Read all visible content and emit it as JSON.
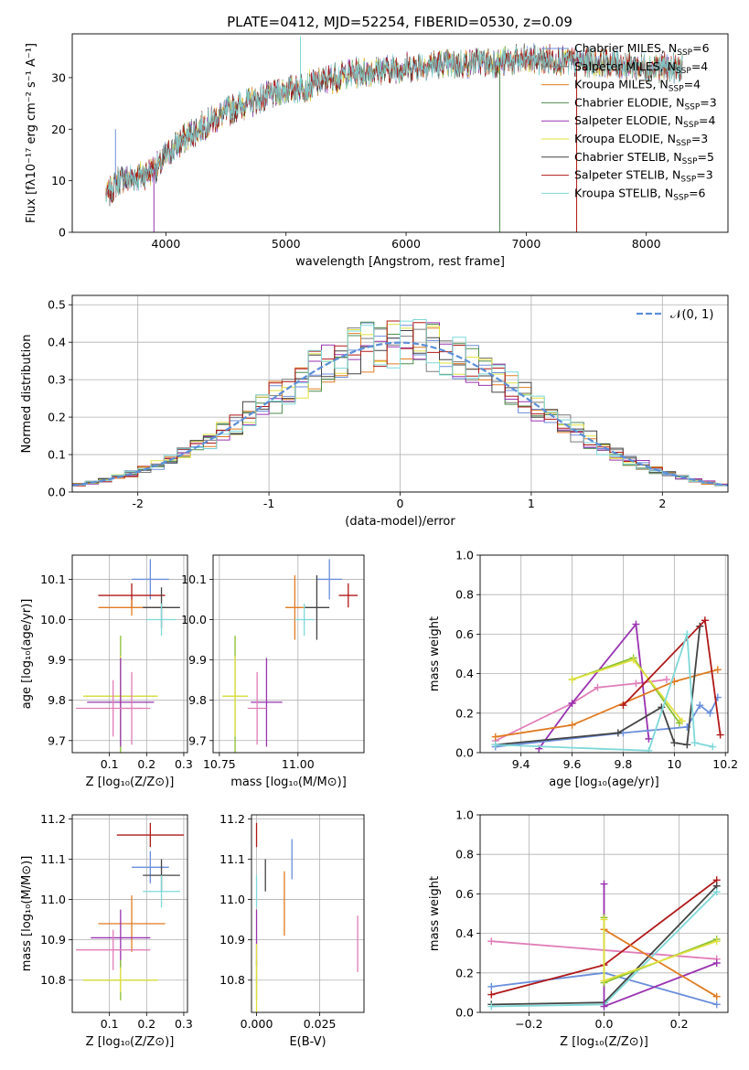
{
  "figure_title": "PLATE=0412, MJD=52254, FIBERID=0530, z=0.09",
  "colors": {
    "Chabrier MILES": "#6a8edb",
    "Salpeter MILES": "#7b7b7b",
    "Kroupa MILES": "#e07b22",
    "Chabrier ELODIE": "#4e8c4e",
    "Salpeter ELODIE": "#9a32b0",
    "Kroupa ELODIE": "#e0e040",
    "Chabrier STELIB": "#444444",
    "Salpeter STELIB": "#b01818",
    "Kroupa STELIB": "#7fd8d8",
    "pink": "#e07db8",
    "lime": "#88c030",
    "normal_curve": "#5b8fd8"
  },
  "chart_data": [
    {
      "id": "spectrum",
      "type": "line",
      "xlabel": "wavelength [Angstrom, rest frame]",
      "ylabel": "Flux [fλ10⁻¹⁷ erg cm⁻² s⁻¹ A⁻¹]",
      "xlim": [
        3220,
        8680
      ],
      "ylim": [
        0,
        38.5
      ],
      "xticks": [
        4000,
        5000,
        6000,
        7000,
        8000
      ],
      "yticks": [
        0,
        10,
        20,
        30
      ],
      "legend_position": "top-right",
      "legend": [
        {
          "label": "Chabrier MILES, N",
          "sub": "SSP",
          "tail": "=6",
          "color": "#6a8edb"
        },
        {
          "label": "Salpeter MILES, N",
          "sub": "SSP",
          "tail": "=4",
          "color": "#7b7b7b"
        },
        {
          "label": "Kroupa MILES, N",
          "sub": "SSP",
          "tail": "=4",
          "color": "#e07b22"
        },
        {
          "label": "Chabrier ELODIE, N",
          "sub": "SSP",
          "tail": "=3",
          "color": "#4e8c4e"
        },
        {
          "label": "Salpeter ELODIE, N",
          "sub": "SSP",
          "tail": "=4",
          "color": "#9a32b0"
        },
        {
          "label": "Kroupa ELODIE, N",
          "sub": "SSP",
          "tail": "=3",
          "color": "#e0e040"
        },
        {
          "label": "Chabrier STELIB, N",
          "sub": "SSP",
          "tail": "=5",
          "color": "#444444"
        },
        {
          "label": "Salpeter STELIB, N",
          "sub": "SSP",
          "tail": "=3",
          "color": "#b01818"
        },
        {
          "label": "Kroupa STELIB, N",
          "sub": "SSP",
          "tail": "=6",
          "color": "#7fd8d8"
        }
      ],
      "continuum": [
        [
          3500,
          7
        ],
        [
          3600,
          10
        ],
        [
          3800,
          11
        ],
        [
          3950,
          13
        ],
        [
          4000,
          15
        ],
        [
          4200,
          19
        ],
        [
          4400,
          22
        ],
        [
          4600,
          24.5
        ],
        [
          4800,
          26
        ],
        [
          5000,
          27.5
        ],
        [
          5200,
          28.5
        ],
        [
          5400,
          30
        ],
        [
          5600,
          31
        ],
        [
          5800,
          31.5
        ],
        [
          6000,
          32
        ],
        [
          6200,
          32.5
        ],
        [
          6400,
          32.5
        ],
        [
          6600,
          33
        ],
        [
          6800,
          33
        ],
        [
          7000,
          33.5
        ],
        [
          7200,
          33.5
        ],
        [
          7400,
          33
        ],
        [
          7600,
          33
        ],
        [
          7800,
          32.5
        ],
        [
          8000,
          32
        ],
        [
          8200,
          32
        ],
        [
          8300,
          31.5
        ]
      ],
      "spikes": [
        [
          3580,
          20
        ],
        [
          3900,
          0
        ],
        [
          5120,
          38
        ],
        [
          6780,
          0
        ],
        [
          7420,
          0
        ]
      ]
    },
    {
      "id": "residuals",
      "type": "bar",
      "xlabel": "(data-model)/error",
      "ylabel": "Normed distribution",
      "xlim": [
        -2.5,
        2.5
      ],
      "ylim": [
        0,
        0.525
      ],
      "xticks": [
        -2,
        -1,
        0,
        1,
        2
      ],
      "yticks": [
        0.0,
        0.1,
        0.2,
        0.3,
        0.4,
        0.5
      ],
      "legend_position": "top-right",
      "legend_label": "𝒩(0, 1)",
      "bins": 50
    },
    {
      "id": "age_vs_Z",
      "type": "scatter",
      "xlabel": "Z [log₁₀(Z/Z⊙)]",
      "ylabel": "age  [log₁₀(age/yr)]",
      "xlim": [
        0.0,
        0.31
      ],
      "ylim": [
        9.67,
        10.16
      ],
      "xticks": [
        0.1,
        0.2,
        0.3
      ],
      "yticks": [
        9.7,
        9.8,
        9.9,
        10.0,
        10.1
      ],
      "points": [
        {
          "x": 0.21,
          "y": 10.1,
          "xerr": 0.05,
          "yerr": 0.05,
          "color": "#6a8edb"
        },
        {
          "x": 0.16,
          "y": 10.06,
          "xerr": 0.09,
          "yerr": 0.03,
          "color": "#b01818"
        },
        {
          "x": 0.16,
          "y": 10.03,
          "xerr": 0.09,
          "yerr": 0.02,
          "color": "#e07b22"
        },
        {
          "x": 0.24,
          "y": 10.03,
          "xerr": 0.05,
          "yerr": 0.05,
          "color": "#444444"
        },
        {
          "x": 0.24,
          "y": 10.0,
          "xerr": 0.04,
          "yerr": 0.04,
          "color": "#7fd8d8"
        },
        {
          "x": 0.13,
          "y": 9.81,
          "xerr": 0.1,
          "yerr": 0.15,
          "color": "#88c030"
        },
        {
          "x": 0.13,
          "y": 9.81,
          "xerr": 0.1,
          "yerr": 0.1,
          "color": "#e0e040"
        },
        {
          "x": 0.13,
          "y": 9.795,
          "xerr": 0.09,
          "yerr": 0.11,
          "color": "#9a32b0"
        },
        {
          "x": 0.11,
          "y": 9.78,
          "xerr": 0.1,
          "yerr": 0.07,
          "color": "#e07db8"
        },
        {
          "x": 0.16,
          "y": 9.78,
          "xerr": 0.03,
          "yerr": 0.09,
          "color": "#e07db8"
        }
      ]
    },
    {
      "id": "age_vs_mass",
      "type": "scatter",
      "xlabel": "mass [log₁₀(M/M⊙)]",
      "ylabel": "",
      "xlim": [
        10.73,
        11.21
      ],
      "ylim": [
        9.67,
        10.16
      ],
      "xticks": [
        10.75,
        11.0
      ],
      "xticklabels": [
        "10.75",
        "11.00"
      ],
      "yticks": [
        9.7,
        9.8,
        9.9,
        10.0,
        10.1
      ],
      "points": [
        {
          "x": 11.1,
          "y": 10.1,
          "xerr": 0.04,
          "yerr": 0.05,
          "color": "#6a8edb"
        },
        {
          "x": 11.16,
          "y": 10.06,
          "xerr": 0.03,
          "yerr": 0.03,
          "color": "#b01818"
        },
        {
          "x": 11.06,
          "y": 10.03,
          "xerr": 0.04,
          "yerr": 0.08,
          "color": "#444444"
        },
        {
          "x": 10.99,
          "y": 10.03,
          "xerr": 0.03,
          "yerr": 0.08,
          "color": "#e07b22"
        },
        {
          "x": 11.02,
          "y": 10.0,
          "xerr": 0.03,
          "yerr": 0.04,
          "color": "#7fd8d8"
        },
        {
          "x": 10.8,
          "y": 9.81,
          "xerr": 0.04,
          "yerr": 0.15,
          "color": "#88c030"
        },
        {
          "x": 10.8,
          "y": 9.81,
          "xerr": 0.04,
          "yerr": 0.1,
          "color": "#e0e040"
        },
        {
          "x": 10.9,
          "y": 9.795,
          "xerr": 0.05,
          "yerr": 0.11,
          "color": "#9a32b0"
        },
        {
          "x": 10.87,
          "y": 9.78,
          "xerr": 0.03,
          "yerr": 0.09,
          "color": "#e07db8"
        }
      ]
    },
    {
      "id": "weight_vs_age",
      "type": "line",
      "xlabel": "age  [log₁₀(age/yr)]",
      "ylabel": "mass weight",
      "xlim": [
        9.24,
        10.21
      ],
      "ylim": [
        0,
        1
      ],
      "xticks": [
        9.4,
        9.6,
        9.8,
        10.0,
        10.2
      ],
      "yticks": [
        0.0,
        0.2,
        0.4,
        0.6,
        0.8,
        1.0
      ],
      "series": [
        {
          "color": "#e07db8",
          "points": [
            [
              9.3,
              0.06
            ],
            [
              9.6,
              0.25
            ],
            [
              9.7,
              0.33
            ],
            [
              9.85,
              0.35
            ],
            [
              9.97,
              0.37
            ]
          ]
        },
        {
          "color": "#9a32b0",
          "points": [
            [
              9.47,
              0.02
            ],
            [
              9.6,
              0.25
            ],
            [
              9.85,
              0.65
            ],
            [
              9.9,
              0.07
            ]
          ]
        },
        {
          "color": "#88c030",
          "points": [
            [
              9.6,
              0.37
            ],
            [
              9.84,
              0.48
            ],
            [
              10.02,
              0.15
            ]
          ]
        },
        {
          "color": "#e0e040",
          "points": [
            [
              9.6,
              0.37
            ],
            [
              9.84,
              0.47
            ],
            [
              10.03,
              0.16
            ]
          ]
        },
        {
          "color": "#e07b22",
          "points": [
            [
              9.3,
              0.08
            ],
            [
              9.6,
              0.14
            ],
            [
              10.0,
              0.36
            ],
            [
              10.17,
              0.42
            ]
          ]
        },
        {
          "color": "#6a8edb",
          "points": [
            [
              9.3,
              0.03
            ],
            [
              9.8,
              0.1
            ],
            [
              10.05,
              0.13
            ],
            [
              10.1,
              0.24
            ],
            [
              10.14,
              0.2
            ],
            [
              10.17,
              0.28
            ]
          ]
        },
        {
          "color": "#444444",
          "points": [
            [
              9.3,
              0.04
            ],
            [
              9.78,
              0.1
            ],
            [
              9.95,
              0.23
            ],
            [
              10.0,
              0.05
            ],
            [
              10.05,
              0.04
            ],
            [
              10.1,
              0.64
            ]
          ]
        },
        {
          "color": "#b01818",
          "points": [
            [
              9.8,
              0.24
            ],
            [
              10.12,
              0.67
            ],
            [
              10.18,
              0.09
            ]
          ]
        },
        {
          "color": "#7fd8d8",
          "points": [
            [
              9.3,
              0.04
            ],
            [
              9.9,
              0.01
            ],
            [
              10.05,
              0.6
            ],
            [
              10.08,
              0.05
            ],
            [
              10.15,
              0.03
            ]
          ]
        }
      ]
    },
    {
      "id": "mass_vs_Z",
      "type": "scatter",
      "xlabel": "Z [log₁₀(Z/Z⊙)]",
      "ylabel": "mass [log₁₀(M/M⊙)]",
      "xlim": [
        0.0,
        0.31
      ],
      "ylim": [
        10.72,
        11.21
      ],
      "xticks": [
        0.1,
        0.2,
        0.3
      ],
      "yticks": [
        10.8,
        10.9,
        11.0,
        11.1,
        11.2
      ],
      "points": [
        {
          "x": 0.21,
          "y": 11.16,
          "xerr": 0.09,
          "yerr": 0.03,
          "color": "#b01818"
        },
        {
          "x": 0.21,
          "y": 11.08,
          "xerr": 0.05,
          "yerr": 0.04,
          "color": "#6a8edb"
        },
        {
          "x": 0.24,
          "y": 11.06,
          "xerr": 0.05,
          "yerr": 0.04,
          "color": "#444444"
        },
        {
          "x": 0.24,
          "y": 11.02,
          "xerr": 0.05,
          "yerr": 0.04,
          "color": "#7fd8d8"
        },
        {
          "x": 0.16,
          "y": 10.94,
          "xerr": 0.09,
          "yerr": 0.07,
          "color": "#e07b22"
        },
        {
          "x": 0.13,
          "y": 10.905,
          "xerr": 0.08,
          "yerr": 0.07,
          "color": "#9a32b0"
        },
        {
          "x": 0.11,
          "y": 10.875,
          "xerr": 0.1,
          "yerr": 0.05,
          "color": "#e07db8"
        },
        {
          "x": 0.13,
          "y": 10.8,
          "xerr": 0.1,
          "yerr": 0.05,
          "color": "#88c030"
        },
        {
          "x": 0.13,
          "y": 10.8,
          "xerr": 0.1,
          "yerr": 0.03,
          "color": "#e0e040"
        }
      ]
    },
    {
      "id": "mass_vs_EBV",
      "type": "scatter",
      "xlabel": "E(B-V)",
      "ylabel": "",
      "xlim": [
        -0.002,
        0.0425
      ],
      "ylim": [
        10.72,
        11.21
      ],
      "xticks": [
        0.0,
        0.025
      ],
      "xticklabels": [
        "0.000",
        "0.025"
      ],
      "yticks": [
        10.8,
        10.9,
        11.0,
        11.1,
        11.2
      ],
      "points": [
        {
          "x": 0.0,
          "y": 11.16,
          "xerr": 0,
          "yerr": 0.03,
          "color": "#b01818"
        },
        {
          "x": 0.014,
          "y": 11.1,
          "xerr": 0,
          "yerr": 0.05,
          "color": "#6a8edb"
        },
        {
          "x": 0.0035,
          "y": 11.06,
          "xerr": 0,
          "yerr": 0.04,
          "color": "#444444"
        },
        {
          "x": 0.0,
          "y": 11.02,
          "xerr": 0,
          "yerr": 0.04,
          "color": "#7fd8d8"
        },
        {
          "x": 0.011,
          "y": 10.99,
          "xerr": 0,
          "yerr": 0.08,
          "color": "#e07b22"
        },
        {
          "x": 0.0,
          "y": 10.905,
          "xerr": 0,
          "yerr": 0.07,
          "color": "#9a32b0"
        },
        {
          "x": 0.04,
          "y": 10.89,
          "xerr": 0,
          "yerr": 0.07,
          "color": "#e07db8"
        },
        {
          "x": 0.0,
          "y": 10.8,
          "xerr": 0,
          "yerr": 0.05,
          "color": "#88c030"
        },
        {
          "x": 0.0,
          "y": 10.8,
          "xerr": 0,
          "yerr": 0.09,
          "color": "#e0e040"
        }
      ]
    },
    {
      "id": "weight_vs_Z",
      "type": "line",
      "xlabel": "Z [log₁₀(Z/Z⊙)]",
      "ylabel": "mass weight",
      "xlim": [
        -0.33,
        0.33
      ],
      "ylim": [
        0,
        1
      ],
      "xticks": [
        -0.2,
        0.0,
        0.2
      ],
      "xticklabels": [
        "−0.2",
        "0.0",
        "0.2"
      ],
      "yticks": [
        0.0,
        0.2,
        0.4,
        0.6,
        0.8,
        1.0
      ],
      "series": [
        {
          "color": "#e07db8",
          "points": [
            [
              -0.3,
              0.36
            ],
            [
              0.3,
              0.27
            ]
          ]
        },
        {
          "color": "#6a8edb",
          "points": [
            [
              -0.3,
              0.13
            ],
            [
              0.0,
              0.2
            ],
            [
              0.3,
              0.04
            ]
          ]
        },
        {
          "color": "#b01818",
          "points": [
            [
              -0.3,
              0.09
            ],
            [
              0.0,
              0.24
            ],
            [
              0.3,
              0.67
            ]
          ]
        },
        {
          "color": "#444444",
          "points": [
            [
              -0.3,
              0.04
            ],
            [
              0.0,
              0.05
            ],
            [
              0.3,
              0.64
            ]
          ]
        },
        {
          "color": "#7fd8d8",
          "points": [
            [
              -0.3,
              0.03
            ],
            [
              0.0,
              0.04
            ],
            [
              0.3,
              0.61
            ]
          ]
        },
        {
          "color": "#9a32b0",
          "points": [
            [
              0.0,
              0.65
            ],
            [
              0.0,
              0.03
            ],
            [
              0.3,
              0.25
            ]
          ]
        },
        {
          "color": "#e07b22",
          "points": [
            [
              0.0,
              0.42
            ],
            [
              0.3,
              0.08
            ]
          ]
        },
        {
          "color": "#88c030",
          "points": [
            [
              0.0,
              0.48
            ],
            [
              0.0,
              0.15
            ],
            [
              0.3,
              0.37
            ]
          ]
        },
        {
          "color": "#e0e040",
          "points": [
            [
              0.0,
              0.47
            ],
            [
              0.0,
              0.16
            ],
            [
              0.3,
              0.36
            ]
          ]
        }
      ]
    }
  ]
}
